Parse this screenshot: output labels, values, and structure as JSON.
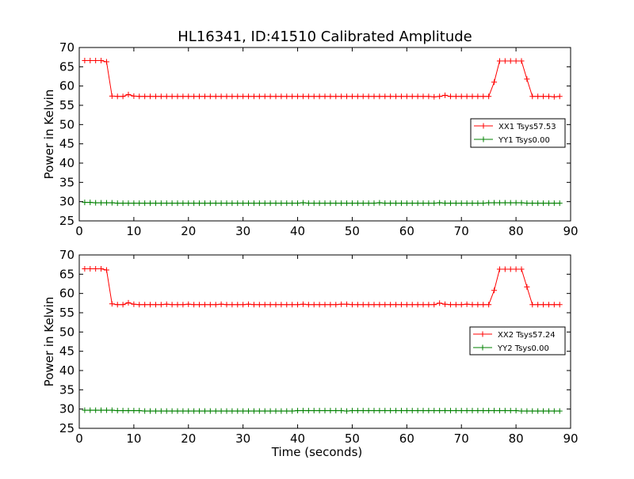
{
  "title": "HL16341, ID:41510 Calibrated Amplitude",
  "colors": {
    "xx": "#ff0000",
    "yy": "#008000",
    "axis": "#000000",
    "background": "#ffffff"
  },
  "chart_data": [
    {
      "type": "line",
      "title": "HL16341, ID:41510 Calibrated Amplitude",
      "xlabel": "",
      "ylabel": "Power in Kelvin",
      "xlim": [
        0,
        90
      ],
      "ylim": [
        25,
        70
      ],
      "xticks": [
        "0",
        "10",
        "20",
        "30",
        "40",
        "50",
        "60",
        "70",
        "80",
        "90"
      ],
      "yticks": [
        "25",
        "30",
        "35",
        "40",
        "45",
        "50",
        "55",
        "60",
        "65",
        "70"
      ],
      "grid": false,
      "legend": "center-right",
      "marker": "plus",
      "x": [
        1,
        2,
        3,
        4,
        5,
        6,
        7,
        8,
        9,
        10,
        11,
        12,
        13,
        14,
        15,
        16,
        17,
        18,
        19,
        20,
        21,
        22,
        23,
        24,
        25,
        26,
        27,
        28,
        29,
        30,
        31,
        32,
        33,
        34,
        35,
        36,
        37,
        38,
        39,
        40,
        41,
        42,
        43,
        44,
        45,
        46,
        47,
        48,
        49,
        50,
        51,
        52,
        53,
        54,
        55,
        56,
        57,
        58,
        59,
        60,
        61,
        62,
        63,
        64,
        65,
        66,
        67,
        68,
        69,
        70,
        71,
        72,
        73,
        74,
        75,
        76,
        77,
        78,
        79,
        80,
        81,
        82,
        83,
        84,
        85,
        86,
        87,
        88
      ],
      "series": [
        {
          "name": "XX1 Tsys57.53",
          "color": "#ff0000",
          "values": [
            66.6,
            66.6,
            66.6,
            66.6,
            66.3,
            57.4,
            57.3,
            57.3,
            57.8,
            57.4,
            57.3,
            57.3,
            57.3,
            57.3,
            57.3,
            57.3,
            57.3,
            57.3,
            57.3,
            57.3,
            57.3,
            57.3,
            57.3,
            57.3,
            57.3,
            57.3,
            57.3,
            57.3,
            57.3,
            57.3,
            57.3,
            57.3,
            57.3,
            57.3,
            57.3,
            57.3,
            57.3,
            57.3,
            57.3,
            57.3,
            57.3,
            57.3,
            57.3,
            57.3,
            57.3,
            57.3,
            57.3,
            57.3,
            57.3,
            57.3,
            57.3,
            57.3,
            57.3,
            57.3,
            57.3,
            57.3,
            57.3,
            57.3,
            57.3,
            57.3,
            57.3,
            57.3,
            57.3,
            57.3,
            57.2,
            57.3,
            57.6,
            57.3,
            57.3,
            57.3,
            57.3,
            57.3,
            57.3,
            57.3,
            57.3,
            61.0,
            66.5,
            66.5,
            66.5,
            66.5,
            66.5,
            61.8,
            57.3,
            57.3,
            57.3,
            57.3,
            57.2,
            57.3
          ]
        },
        {
          "name": "YY1 Tsys0.00",
          "color": "#008000",
          "values": [
            29.8,
            29.8,
            29.7,
            29.7,
            29.7,
            29.7,
            29.6,
            29.6,
            29.6,
            29.6,
            29.6,
            29.6,
            29.6,
            29.6,
            29.6,
            29.6,
            29.6,
            29.6,
            29.6,
            29.6,
            29.6,
            29.6,
            29.6,
            29.6,
            29.6,
            29.6,
            29.6,
            29.6,
            29.6,
            29.6,
            29.6,
            29.6,
            29.6,
            29.6,
            29.6,
            29.6,
            29.6,
            29.6,
            29.6,
            29.6,
            29.7,
            29.6,
            29.6,
            29.6,
            29.6,
            29.6,
            29.6,
            29.6,
            29.6,
            29.6,
            29.6,
            29.6,
            29.6,
            29.6,
            29.7,
            29.6,
            29.6,
            29.6,
            29.6,
            29.6,
            29.6,
            29.6,
            29.6,
            29.6,
            29.6,
            29.7,
            29.6,
            29.6,
            29.6,
            29.6,
            29.6,
            29.6,
            29.6,
            29.6,
            29.7,
            29.7,
            29.7,
            29.7,
            29.7,
            29.7,
            29.7,
            29.6,
            29.6,
            29.6,
            29.6,
            29.6,
            29.6,
            29.6
          ]
        }
      ]
    },
    {
      "type": "line",
      "title": "",
      "xlabel": "Time (seconds)",
      "ylabel": "Power in Kelvin",
      "xlim": [
        0,
        90
      ],
      "ylim": [
        25,
        70
      ],
      "xticks": [
        "0",
        "10",
        "20",
        "30",
        "40",
        "50",
        "60",
        "70",
        "80",
        "90"
      ],
      "yticks": [
        "25",
        "30",
        "35",
        "40",
        "45",
        "50",
        "55",
        "60",
        "65",
        "70"
      ],
      "grid": false,
      "legend": "center-right",
      "marker": "plus",
      "x": [
        1,
        2,
        3,
        4,
        5,
        6,
        7,
        8,
        9,
        10,
        11,
        12,
        13,
        14,
        15,
        16,
        17,
        18,
        19,
        20,
        21,
        22,
        23,
        24,
        25,
        26,
        27,
        28,
        29,
        30,
        31,
        32,
        33,
        34,
        35,
        36,
        37,
        38,
        39,
        40,
        41,
        42,
        43,
        44,
        45,
        46,
        47,
        48,
        49,
        50,
        51,
        52,
        53,
        54,
        55,
        56,
        57,
        58,
        59,
        60,
        61,
        62,
        63,
        64,
        65,
        66,
        67,
        68,
        69,
        70,
        71,
        72,
        73,
        74,
        75,
        76,
        77,
        78,
        79,
        80,
        81,
        82,
        83,
        84,
        85,
        86,
        87,
        88
      ],
      "series": [
        {
          "name": "XX2 Tsys57.24",
          "color": "#ff0000",
          "values": [
            66.4,
            66.4,
            66.4,
            66.4,
            66.1,
            57.3,
            57.1,
            57.1,
            57.6,
            57.2,
            57.1,
            57.1,
            57.1,
            57.1,
            57.1,
            57.2,
            57.1,
            57.1,
            57.1,
            57.2,
            57.1,
            57.1,
            57.1,
            57.1,
            57.1,
            57.2,
            57.1,
            57.1,
            57.1,
            57.1,
            57.2,
            57.1,
            57.1,
            57.1,
            57.1,
            57.1,
            57.1,
            57.1,
            57.1,
            57.1,
            57.2,
            57.1,
            57.1,
            57.1,
            57.1,
            57.1,
            57.1,
            57.2,
            57.2,
            57.1,
            57.1,
            57.1,
            57.1,
            57.1,
            57.1,
            57.1,
            57.1,
            57.1,
            57.1,
            57.1,
            57.1,
            57.1,
            57.1,
            57.1,
            57.1,
            57.5,
            57.2,
            57.1,
            57.1,
            57.1,
            57.2,
            57.1,
            57.1,
            57.1,
            57.1,
            60.8,
            66.3,
            66.3,
            66.3,
            66.3,
            66.3,
            61.7,
            57.1,
            57.1,
            57.1,
            57.1,
            57.1,
            57.1
          ]
        },
        {
          "name": "YY2 Tsys0.00",
          "color": "#008000",
          "values": [
            29.7,
            29.7,
            29.7,
            29.7,
            29.7,
            29.7,
            29.6,
            29.6,
            29.6,
            29.6,
            29.6,
            29.5,
            29.5,
            29.5,
            29.5,
            29.5,
            29.5,
            29.5,
            29.5,
            29.5,
            29.5,
            29.5,
            29.5,
            29.5,
            29.5,
            29.5,
            29.5,
            29.5,
            29.5,
            29.5,
            29.5,
            29.5,
            29.5,
            29.5,
            29.5,
            29.5,
            29.5,
            29.5,
            29.5,
            29.6,
            29.6,
            29.6,
            29.6,
            29.6,
            29.6,
            29.6,
            29.6,
            29.6,
            29.5,
            29.6,
            29.6,
            29.6,
            29.6,
            29.6,
            29.6,
            29.6,
            29.6,
            29.6,
            29.6,
            29.6,
            29.6,
            29.6,
            29.6,
            29.6,
            29.6,
            29.6,
            29.6,
            29.6,
            29.6,
            29.6,
            29.6,
            29.6,
            29.6,
            29.6,
            29.6,
            29.6,
            29.6,
            29.6,
            29.6,
            29.6,
            29.5,
            29.5,
            29.5,
            29.5,
            29.5,
            29.5,
            29.5,
            29.5
          ]
        }
      ]
    }
  ]
}
